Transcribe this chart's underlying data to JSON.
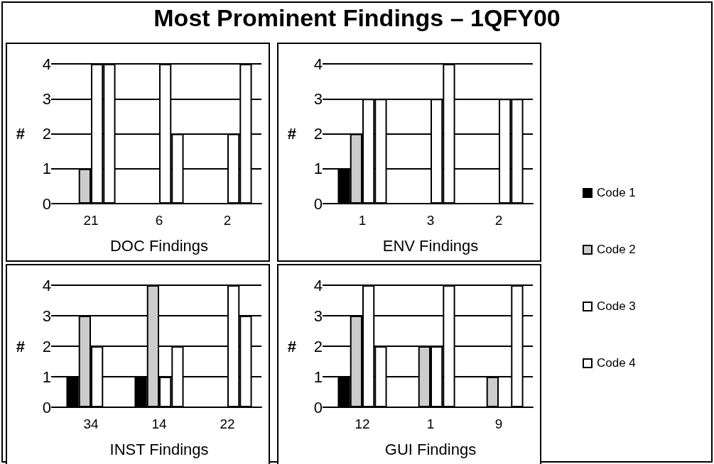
{
  "chart_data": [
    {
      "type": "bar",
      "title": "Most Prominent Findings – 1QFY00",
      "xlabel": "DOC Findings",
      "ylabel": "#",
      "categories": [
        "21",
        "6",
        "2"
      ],
      "ylim": [
        0,
        4
      ],
      "yticks": [
        0,
        1,
        2,
        3,
        4
      ],
      "grid": "y",
      "legend": "right",
      "series": [
        {
          "name": "Code 1",
          "color": "#000000",
          "values": [
            0,
            0,
            0
          ]
        },
        {
          "name": "Code 2",
          "color": "#cccccc",
          "values": [
            1,
            0,
            0
          ]
        },
        {
          "name": "Code 3",
          "color": "#ffffff",
          "values": [
            4,
            4,
            2
          ]
        },
        {
          "name": "Code 4",
          "color": "#ffffff",
          "values": [
            4,
            2,
            4
          ]
        }
      ]
    },
    {
      "type": "bar",
      "xlabel": "ENV Findings",
      "ylabel": "#",
      "categories": [
        "1",
        "3",
        "2"
      ],
      "ylim": [
        0,
        4
      ],
      "yticks": [
        0,
        1,
        2,
        3,
        4
      ],
      "grid": "y",
      "series": [
        {
          "color": "#000000",
          "values": [
            1,
            0,
            0
          ]
        },
        {
          "color": "#cccccc",
          "values": [
            2,
            0,
            0
          ]
        },
        {
          "color": "#ffffff",
          "values": [
            3,
            3,
            3
          ]
        },
        {
          "color": "#ffffff",
          "values": [
            3,
            4,
            3
          ]
        }
      ]
    },
    {
      "type": "bar",
      "xlabel": "INST Findings",
      "ylabel": "#",
      "categories": [
        "34",
        "14",
        "22"
      ],
      "ylim": [
        0,
        4
      ],
      "yticks": [
        0,
        1,
        2,
        3,
        4
      ],
      "grid": "y",
      "series": [
        {
          "color": "#000000",
          "values": [
            1,
            1,
            0
          ]
        },
        {
          "color": "#cccccc",
          "values": [
            3,
            4,
            0
          ]
        },
        {
          "color": "#ffffff",
          "values": [
            2,
            1,
            4
          ]
        },
        {
          "color": "#ffffff",
          "values": [
            0,
            2,
            3
          ]
        }
      ]
    },
    {
      "type": "bar",
      "xlabel": "GUI Findings",
      "ylabel": "#",
      "categories": [
        "12",
        "1",
        "9"
      ],
      "ylim": [
        0,
        4
      ],
      "yticks": [
        0,
        1,
        2,
        3,
        4
      ],
      "grid": "y",
      "series": [
        {
          "color": "#000000",
          "values": [
            1,
            0,
            0
          ]
        },
        {
          "color": "#cccccc",
          "values": [
            3,
            2,
            1
          ]
        },
        {
          "color": "#ffffff",
          "values": [
            4,
            2,
            0
          ]
        },
        {
          "color": "#ffffff",
          "values": [
            2,
            4,
            4
          ]
        }
      ]
    }
  ]
}
